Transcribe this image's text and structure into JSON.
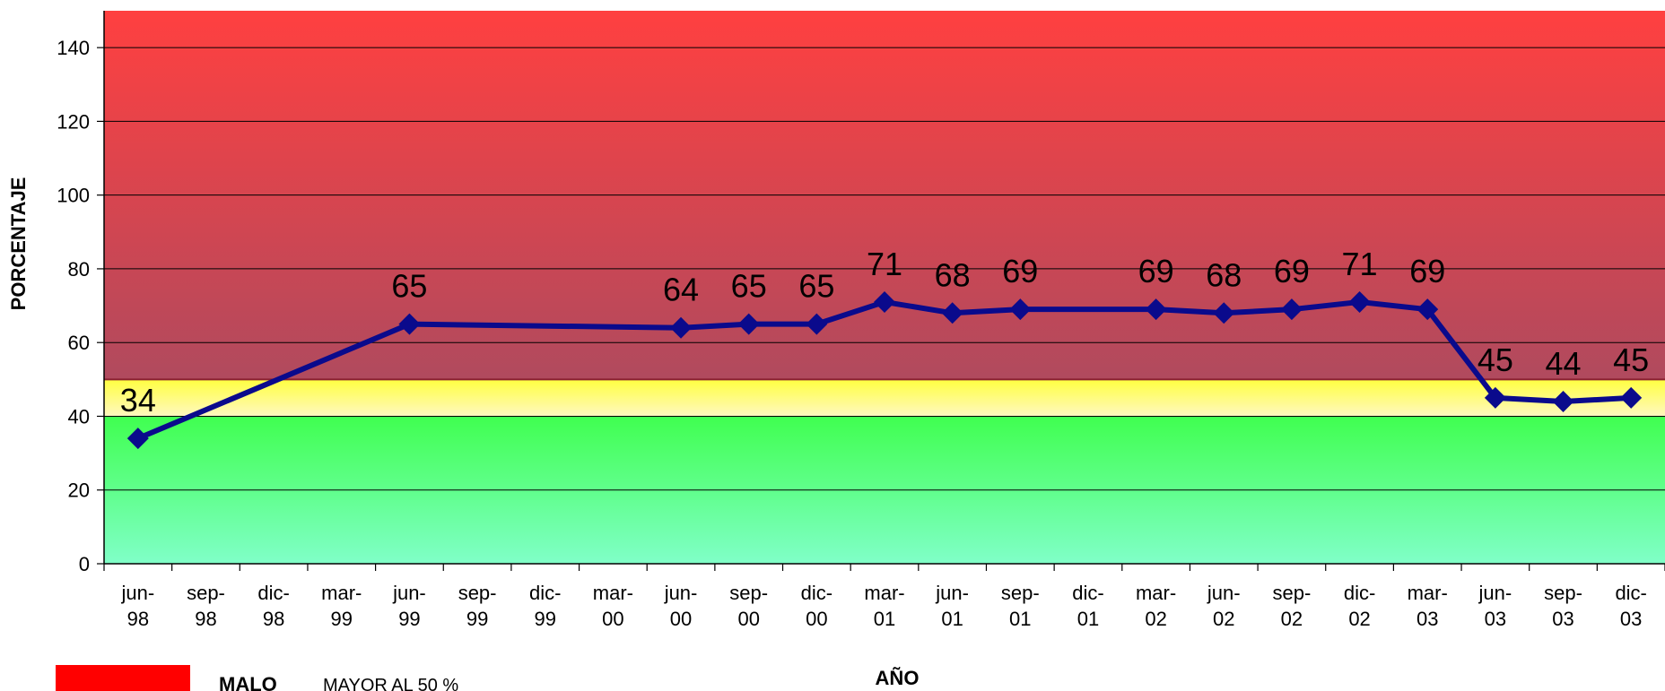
{
  "chart_data": {
    "type": "line",
    "x": [
      "jun-98",
      "sep-98",
      "dic-98",
      "mar-99",
      "jun-99",
      "sep-99",
      "dic-99",
      "mar-00",
      "jun-00",
      "sep-00",
      "dic-00",
      "mar-01",
      "jun-01",
      "sep-01",
      "dic-01",
      "mar-02",
      "jun-02",
      "sep-02",
      "dic-02",
      "mar-03",
      "jun-03",
      "sep-03",
      "dic-03"
    ],
    "series": [
      {
        "values": [
          34,
          null,
          null,
          null,
          65,
          null,
          null,
          null,
          64,
          65,
          65,
          71,
          68,
          69,
          null,
          69,
          68,
          69,
          71,
          69,
          45,
          44,
          45
        ],
        "color": "#0a0a8c"
      }
    ],
    "xlabel": "AÑO",
    "ylabel": "PORCENTAJE",
    "ylim": [
      0,
      150
    ],
    "yticks": [
      0,
      20,
      40,
      60,
      80,
      100,
      120,
      140
    ],
    "grid": true,
    "bands": [
      {
        "from": 50,
        "to": 150,
        "colors": [
          "#ff4040",
          "#b04a5e"
        ]
      },
      {
        "from": 40,
        "to": 50,
        "colors": [
          "#ffff40",
          "#fff8c0"
        ]
      },
      {
        "from": 0,
        "to": 40,
        "colors": [
          "#40ff50",
          "#80ffc8"
        ]
      }
    ]
  },
  "legend": [
    {
      "label": "MALO",
      "desc": "MAYOR AL 50 %",
      "color": "#ff0000"
    }
  ]
}
